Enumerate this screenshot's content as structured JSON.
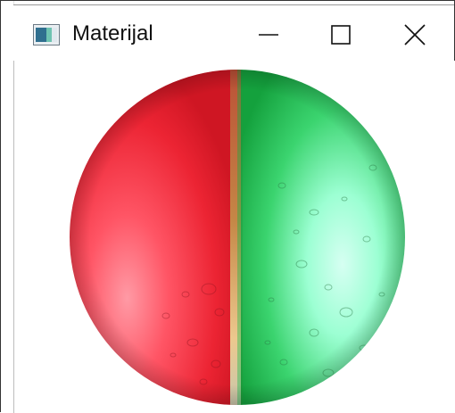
{
  "window": {
    "title": "Materijal",
    "icon": "app-window-icon",
    "controls": {
      "minimize_icon": "minimize-icon",
      "maximize_icon": "maximize-icon",
      "close_icon": "close-icon"
    }
  },
  "scene": {
    "object": "sphere",
    "colors": {
      "left_half": "#e8202e",
      "right_half": "#1fba4a",
      "highlight_right": "#c9fff0",
      "highlight_left": "#ff7f8a",
      "seam": "#b38a3a"
    }
  }
}
